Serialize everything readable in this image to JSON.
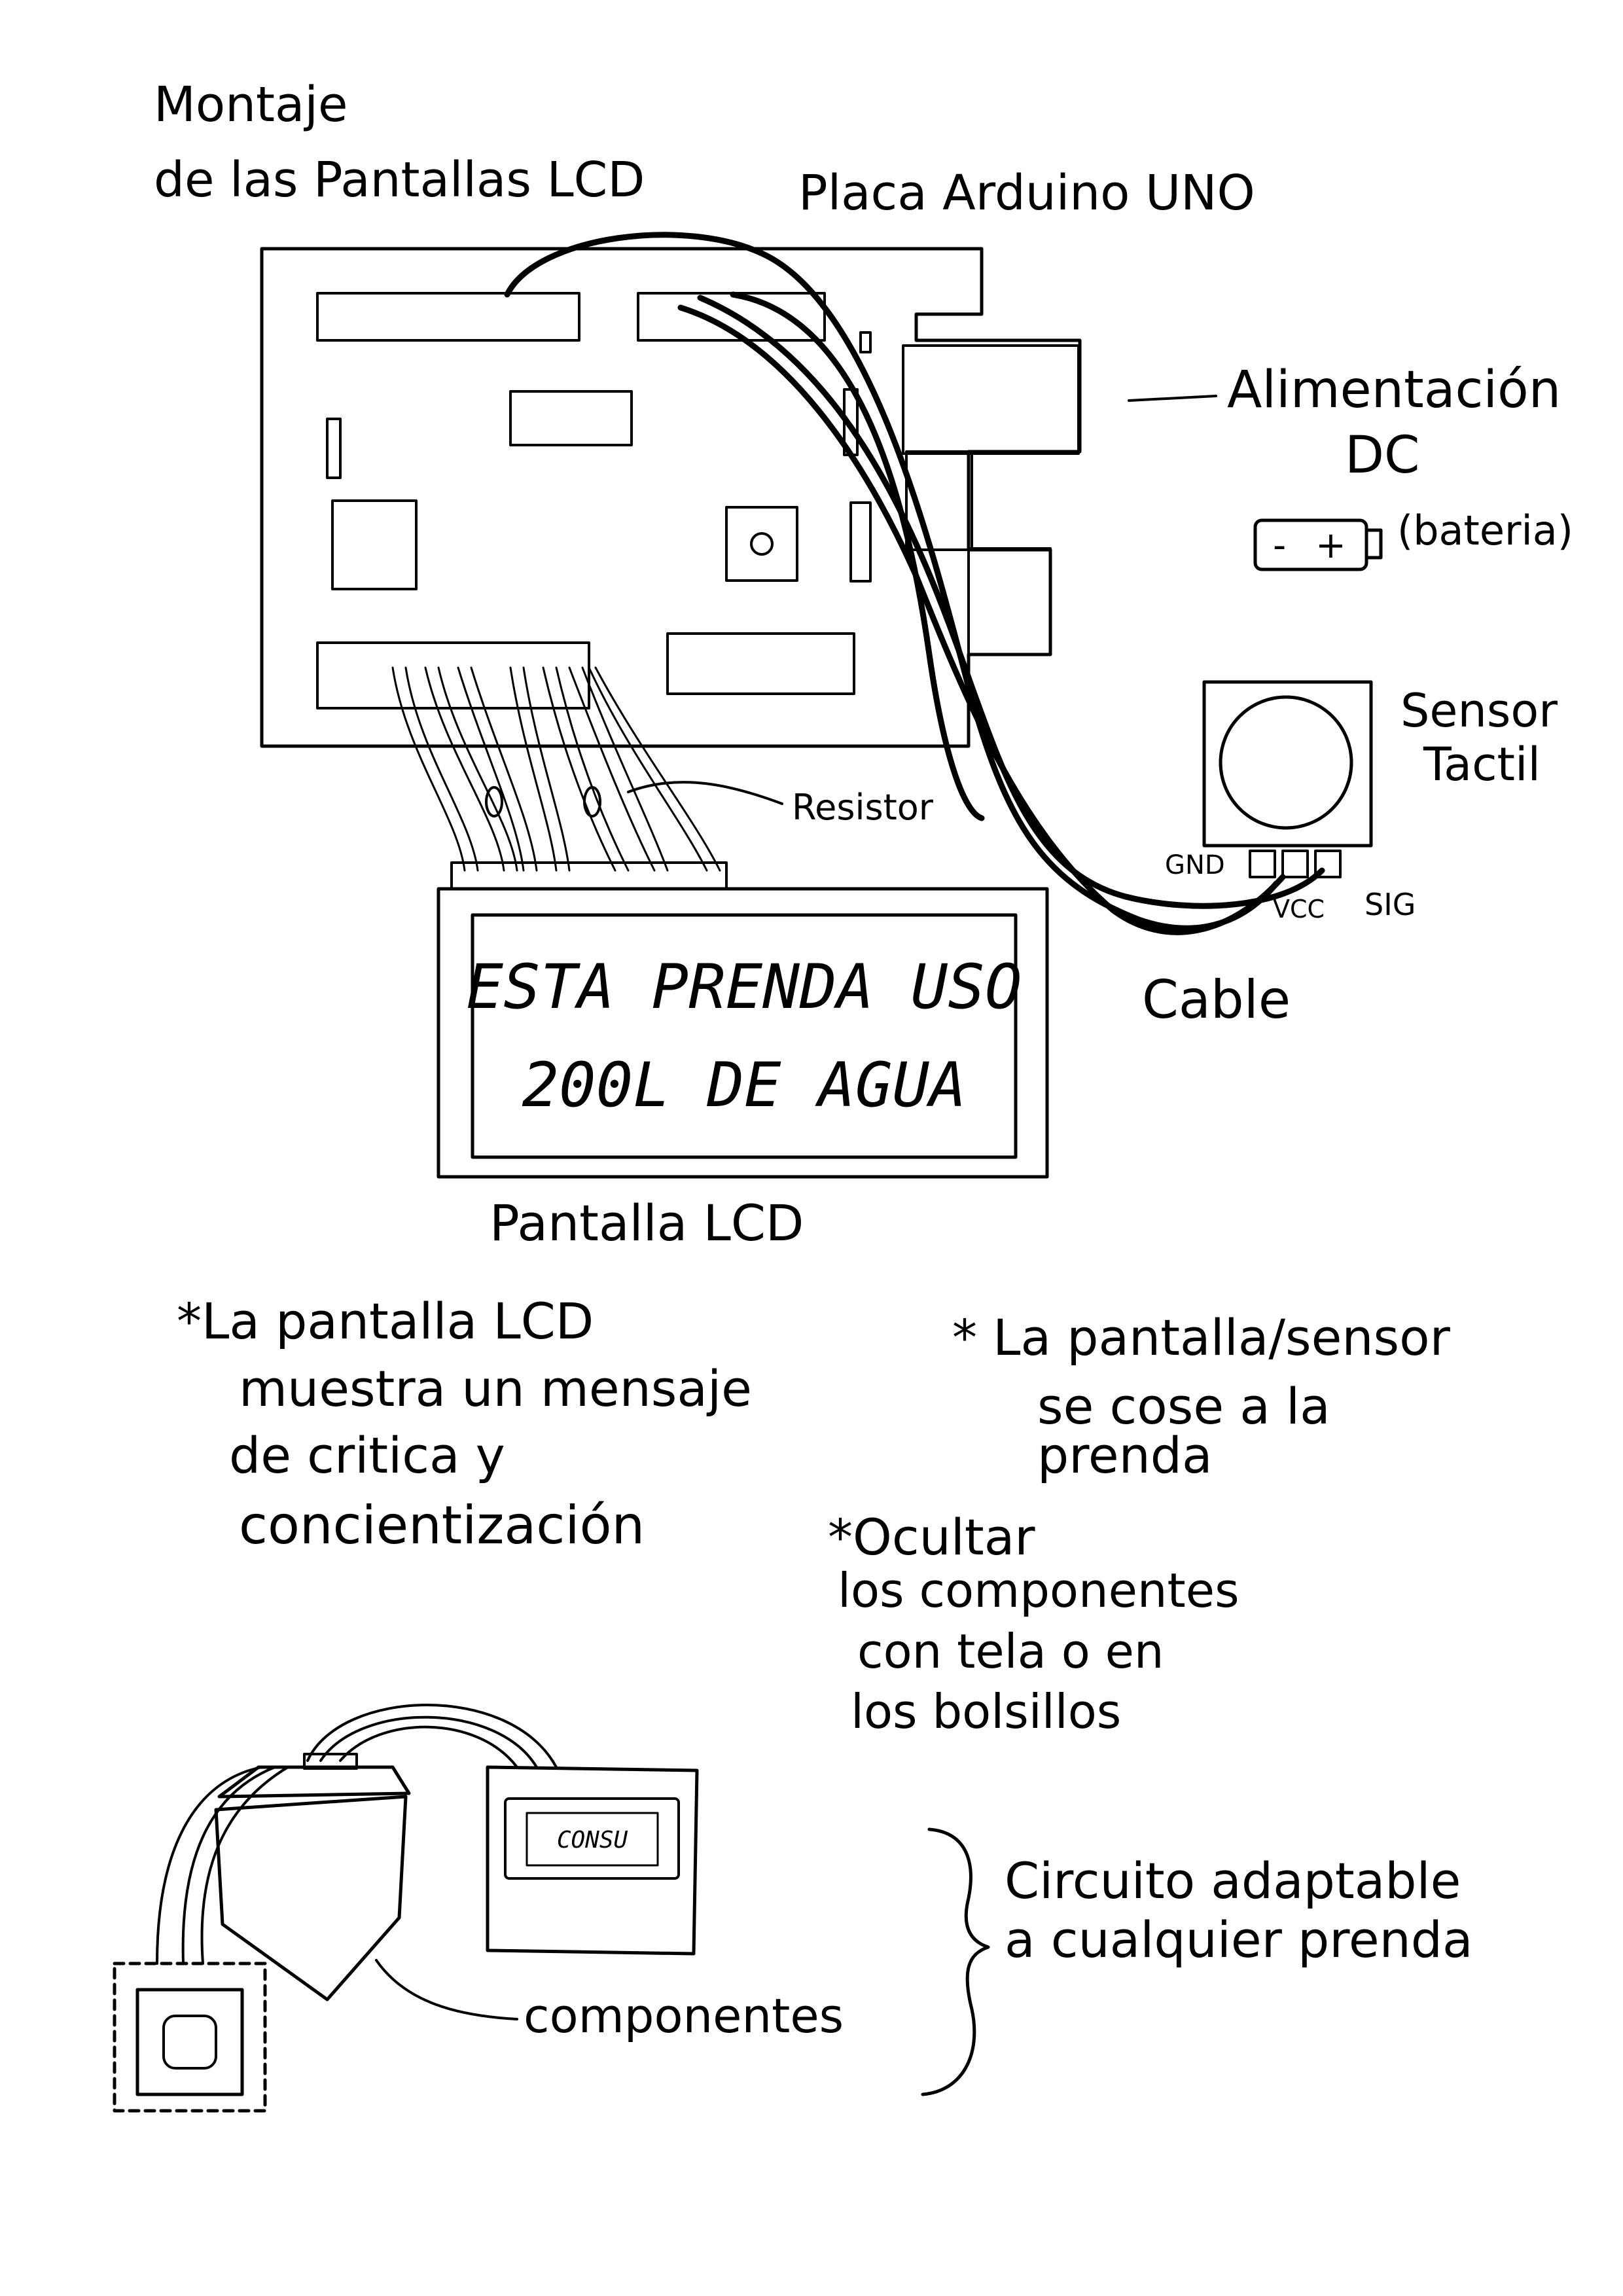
{
  "title": {
    "line1": "Montaje",
    "line2": "de las Pantallas LCD"
  },
  "labels": {
    "board": "Placa Arduino UNO",
    "power_1": "Alimentación",
    "power_2": "DC",
    "battery": "(bateria)",
    "battery_minus": "-",
    "battery_plus": "+",
    "sensor_1": "Sensor",
    "sensor_2": "Tactil",
    "pin_gnd": "GND",
    "pin_vcc": "VCC",
    "pin_sig": "SIG",
    "resistor": "Resistor",
    "cable": "Cable",
    "lcd": "Pantalla LCD",
    "components": "componentes",
    "adaptable_1": "Circuito adaptable",
    "adaptable_2": "a cualquier prenda",
    "mini_lcd_text": "CONSU"
  },
  "lcd_display": {
    "line1": "ESTA PRENDA USO",
    "line2": "200L DE AGUA"
  },
  "notes": [
    {
      "lines": [
        "*La pantalla LCD",
        "muestra un mensaje",
        "de critica y",
        "concientización"
      ]
    },
    {
      "lines": [
        "* La pantalla/sensor",
        "se cose a la",
        "prenda"
      ]
    },
    {
      "lines": [
        "*Ocultar",
        "los componentes",
        "con tela o en",
        "los bolsillos"
      ]
    }
  ]
}
